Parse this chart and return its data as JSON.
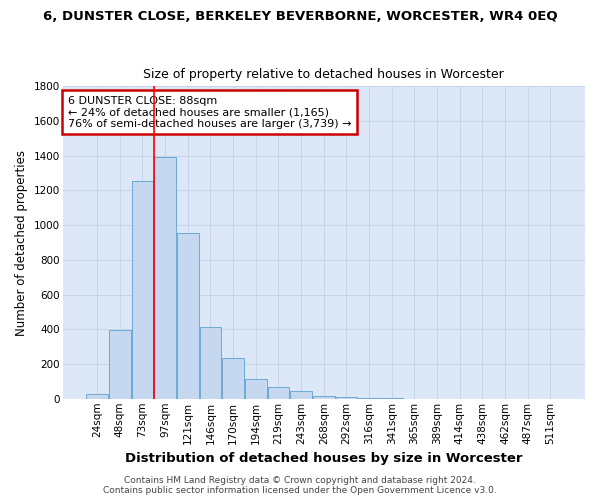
{
  "title": "6, DUNSTER CLOSE, BERKELEY BEVERBORNE, WORCESTER, WR4 0EQ",
  "subtitle": "Size of property relative to detached houses in Worcester",
  "xlabel": "Distribution of detached houses by size in Worcester",
  "ylabel": "Number of detached properties",
  "bar_labels": [
    "24sqm",
    "48sqm",
    "73sqm",
    "97sqm",
    "121sqm",
    "146sqm",
    "170sqm",
    "194sqm",
    "219sqm",
    "243sqm",
    "268sqm",
    "292sqm",
    "316sqm",
    "341sqm",
    "365sqm",
    "389sqm",
    "414sqm",
    "438sqm",
    "462sqm",
    "487sqm",
    "511sqm"
  ],
  "bar_values": [
    25,
    395,
    1255,
    1390,
    955,
    415,
    235,
    115,
    68,
    45,
    18,
    10,
    4,
    2,
    1,
    0,
    0,
    0,
    0,
    0,
    0
  ],
  "bar_color": "#c5d8f0",
  "bar_edge_color": "#6aaad4",
  "red_line_x": 2.5,
  "annotation_line1": "6 DUNSTER CLOSE: 88sqm",
  "annotation_line2": "← 24% of detached houses are smaller (1,165)",
  "annotation_line3": "76% of semi-detached houses are larger (3,739) →",
  "annotation_box_color": "#ffffff",
  "annotation_box_edge_color": "#cc0000",
  "ylim": [
    0,
    1800
  ],
  "yticks": [
    0,
    200,
    400,
    600,
    800,
    1000,
    1200,
    1400,
    1600,
    1800
  ],
  "grid_color": "#c8d4e8",
  "background_color": "#dce8f8",
  "footer_text": "Contains HM Land Registry data © Crown copyright and database right 2024.\nContains public sector information licensed under the Open Government Licence v3.0.",
  "title_fontsize": 9.5,
  "subtitle_fontsize": 9,
  "xlabel_fontsize": 9.5,
  "ylabel_fontsize": 8.5,
  "tick_fontsize": 7.5,
  "annotation_fontsize": 8,
  "footer_fontsize": 6.5
}
